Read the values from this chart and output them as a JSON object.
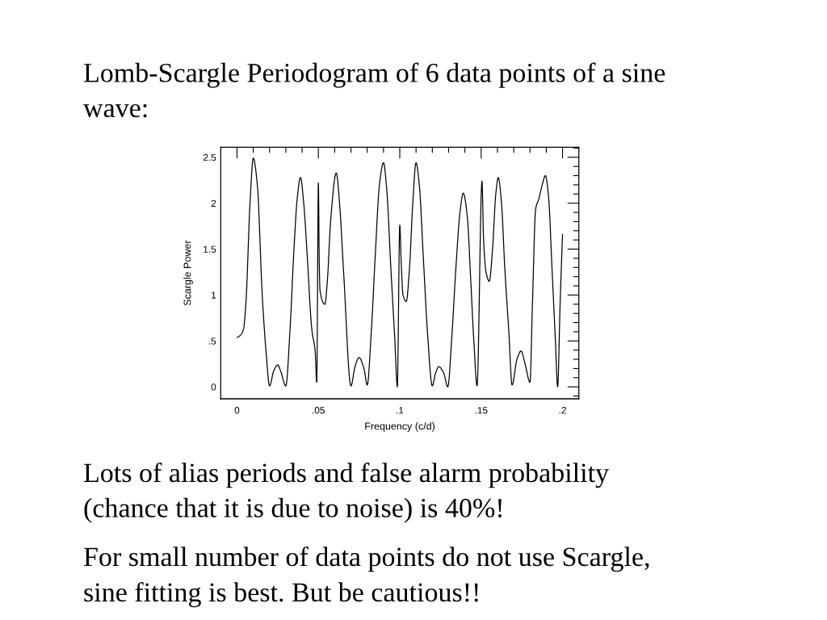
{
  "chart_data": {
    "type": "line",
    "title": "Lomb-Scargle Periodogram of 6 data points of a sine wave:",
    "xlabel": "Frequency (c/d)",
    "ylabel": "Scargle Power",
    "annotations": [
      "Lots of alias periods and false alarm probability (chance that it is due to noise) is 40%!",
      "For small number of data points do not use Scargle, sine fitting is best. But be cautious!!"
    ],
    "x": [
      0,
      0.002,
      0.004,
      0.0055,
      0.008,
      0.01,
      0.0125,
      0.0155,
      0.018,
      0.02,
      0.0225,
      0.025,
      0.027,
      0.03,
      0.0325,
      0.035,
      0.037,
      0.039,
      0.041,
      0.043,
      0.046,
      0.048,
      0.049,
      0.05,
      0.0505,
      0.051,
      0.054,
      0.0555,
      0.0575,
      0.061,
      0.063,
      0.0655,
      0.07,
      0.0725,
      0.075,
      0.078,
      0.08,
      0.0825,
      0.085,
      0.0875,
      0.09,
      0.092,
      0.0945,
      0.097,
      0.0985,
      0.1,
      0.101,
      0.102,
      0.104,
      0.106,
      0.108,
      0.11,
      0.112,
      0.1145,
      0.117,
      0.12,
      0.122,
      0.124,
      0.127,
      0.1295,
      0.132,
      0.1345,
      0.137,
      0.139,
      0.1415,
      0.1435,
      0.1455,
      0.1475,
      0.1505,
      0.1515,
      0.153,
      0.155,
      0.157,
      0.159,
      0.1605,
      0.1625,
      0.1645,
      0.167,
      0.169,
      0.172,
      0.1745,
      0.177,
      0.18,
      0.1815,
      0.1835,
      0.1855,
      0.1875,
      0.1895,
      0.1915,
      0.1935,
      0.1955,
      0.197,
      0.1985,
      0.2
    ],
    "series": [
      {
        "color": "#000000",
        "values": [
          0.54,
          0.56,
          0.63,
          0.92,
          2.0,
          2.49,
          2.2,
          1.0,
          0.35,
          0.01,
          0.17,
          0.24,
          0.16,
          0.01,
          0.6,
          1.5,
          2.05,
          2.28,
          2.0,
          1.47,
          0.62,
          0.39,
          0.05,
          2.22,
          1.4,
          1.05,
          0.9,
          1.15,
          1.8,
          2.33,
          2.0,
          1.25,
          0.01,
          0.22,
          0.32,
          0.2,
          0.02,
          0.6,
          1.45,
          2.2,
          2.44,
          2.15,
          1.3,
          0.5,
          0.0,
          1.76,
          1.3,
          1.0,
          0.93,
          1.3,
          2.0,
          2.44,
          2.2,
          1.4,
          0.6,
          0.01,
          0.15,
          0.22,
          0.15,
          0.0,
          0.55,
          1.3,
          1.9,
          2.11,
          1.85,
          1.2,
          0.5,
          0.01,
          2.24,
          1.6,
          1.25,
          1.15,
          1.5,
          2.1,
          2.28,
          2.0,
          1.3,
          0.6,
          0.02,
          0.3,
          0.39,
          0.25,
          0.05,
          0.9,
          1.94,
          2.05,
          2.2,
          2.3,
          2.05,
          1.3,
          0.55,
          0.0,
          0.9,
          1.66
        ]
      }
    ],
    "xlim": [
      -0.01,
      0.21
    ],
    "ylim": [
      -0.13,
      2.61
    ],
    "xticks": [
      0,
      {
        "value": 0.01,
        "label": null
      },
      {
        "value": 0.02,
        "label": null
      },
      {
        "value": 0.03,
        "label": null
      },
      {
        "value": 0.04,
        "label": null
      },
      {
        "value": 0.05,
        "label": ".05"
      },
      {
        "value": 0.06,
        "label": null
      },
      {
        "value": 0.07,
        "label": null
      },
      {
        "value": 0.08,
        "label": null
      },
      {
        "value": 0.09,
        "label": null
      },
      {
        "value": 0.1,
        "label": ".1"
      },
      {
        "value": 0.11,
        "label": null
      },
      {
        "value": 0.12,
        "label": null
      },
      {
        "value": 0.13,
        "label": null
      },
      {
        "value": 0.14,
        "label": null
      },
      {
        "value": 0.15,
        "label": ".15"
      },
      {
        "value": 0.16,
        "label": null
      },
      {
        "value": 0.17,
        "label": null
      },
      {
        "value": 0.18,
        "label": null
      },
      {
        "value": 0.19,
        "label": null
      },
      {
        "value": 0.2,
        "label": ".2"
      }
    ],
    "yticks": [
      {
        "value": -0.1,
        "label": null
      },
      0,
      {
        "value": 0.1,
        "label": null
      },
      {
        "value": 0.2,
        "label": null
      },
      {
        "value": 0.3,
        "label": null
      },
      {
        "value": 0.4,
        "label": null
      },
      {
        "value": 0.5,
        "label": ".5"
      },
      {
        "value": 0.6,
        "label": null
      },
      {
        "value": 0.7,
        "label": null
      },
      {
        "value": 0.8,
        "label": null
      },
      {
        "value": 0.9,
        "label": null
      },
      1,
      {
        "value": 1.1,
        "label": null
      },
      {
        "value": 1.2,
        "label": null
      },
      {
        "value": 1.3,
        "label": null
      },
      {
        "value": 1.4,
        "label": null
      },
      1.5,
      {
        "value": 1.6,
        "label": null
      },
      {
        "value": 1.7,
        "label": null
      },
      {
        "value": 1.8,
        "label": null
      },
      {
        "value": 1.9,
        "label": null
      },
      2,
      {
        "value": 2.1,
        "label": null
      },
      {
        "value": 2.2,
        "label": null
      },
      {
        "value": 2.3,
        "label": null
      },
      {
        "value": 2.4,
        "label": null
      },
      2.5,
      {
        "value": 2.6,
        "label": null
      }
    ]
  }
}
